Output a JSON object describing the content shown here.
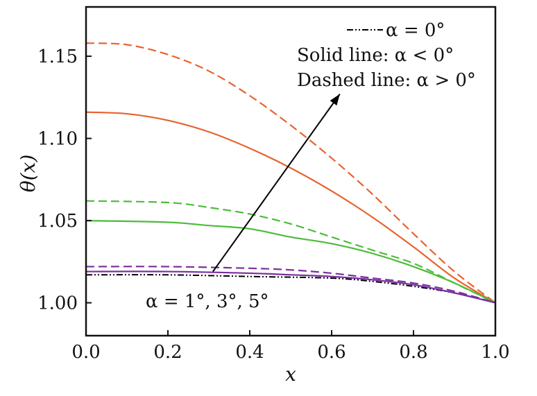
{
  "chart_data": {
    "type": "line",
    "xlabel": "x",
    "ylabel": "θ(x)",
    "xlim": [
      0.0,
      1.0
    ],
    "ylim": [
      0.98,
      1.18
    ],
    "xticks": [
      "0.0",
      "0.2",
      "0.4",
      "0.6",
      "0.8",
      "1.0"
    ],
    "yticks": [
      "1.00",
      "1.05",
      "1.10",
      "1.15"
    ],
    "grid": false,
    "legend": {
      "position": "top-right",
      "entries": [
        "α = 0°",
        "Solid line: α < 0°",
        "Dashed line: α > 0°"
      ]
    },
    "annotations": [
      {
        "text": "α = 1°, 3°, 5°",
        "arrow": {
          "from": [
            0.31,
            1.019
          ],
          "to": [
            0.62,
            1.127
          ]
        }
      }
    ],
    "series": [
      {
        "name": "α = 0°",
        "style": "dash-dot-dot",
        "color": "#000000",
        "x": [
          0.0,
          0.2,
          0.4,
          0.6,
          0.7,
          0.8,
          0.9,
          1.0
        ],
        "y": [
          1.017,
          1.017,
          1.016,
          1.015,
          1.013,
          1.01,
          1.006,
          1.0
        ]
      },
      {
        "style": "solid",
        "color": "#e8622c",
        "x": [
          0.0,
          0.1,
          0.2,
          0.3,
          0.4,
          0.5,
          0.6,
          0.7,
          0.8,
          0.9,
          1.0
        ],
        "y": [
          1.116,
          1.115,
          1.111,
          1.104,
          1.094,
          1.082,
          1.068,
          1.052,
          1.034,
          1.015,
          1.0
        ]
      },
      {
        "style": "dashed",
        "color": "#e8622c",
        "x": [
          0.0,
          0.1,
          0.2,
          0.3,
          0.4,
          0.5,
          0.6,
          0.7,
          0.8,
          0.9,
          1.0
        ],
        "y": [
          1.158,
          1.157,
          1.151,
          1.141,
          1.126,
          1.108,
          1.088,
          1.066,
          1.042,
          1.019,
          1.0
        ]
      },
      {
        "style": "solid",
        "color": "#4cbb3a",
        "x": [
          0.0,
          0.2,
          0.3,
          0.4,
          0.5,
          0.6,
          0.7,
          0.8,
          0.9,
          1.0
        ],
        "y": [
          1.05,
          1.049,
          1.047,
          1.045,
          1.04,
          1.036,
          1.03,
          1.022,
          1.012,
          1.0
        ]
      },
      {
        "style": "dashed",
        "color": "#4cbb3a",
        "x": [
          0.0,
          0.2,
          0.3,
          0.4,
          0.5,
          0.6,
          0.7,
          0.8,
          0.9,
          1.0
        ],
        "y": [
          1.062,
          1.061,
          1.058,
          1.054,
          1.048,
          1.04,
          1.032,
          1.024,
          1.012,
          1.0
        ]
      },
      {
        "style": "solid",
        "color": "#7a2fa0",
        "x": [
          0.0,
          0.2,
          0.4,
          0.5,
          0.6,
          0.7,
          0.8,
          0.9,
          1.0
        ],
        "y": [
          1.019,
          1.019,
          1.018,
          1.017,
          1.016,
          1.014,
          1.011,
          1.006,
          1.0
        ]
      },
      {
        "style": "dashed",
        "color": "#7a2fa0",
        "x": [
          0.0,
          0.2,
          0.4,
          0.5,
          0.6,
          0.7,
          0.8,
          0.9,
          1.0
        ],
        "y": [
          1.022,
          1.022,
          1.021,
          1.02,
          1.018,
          1.015,
          1.012,
          1.007,
          1.0
        ]
      }
    ]
  }
}
